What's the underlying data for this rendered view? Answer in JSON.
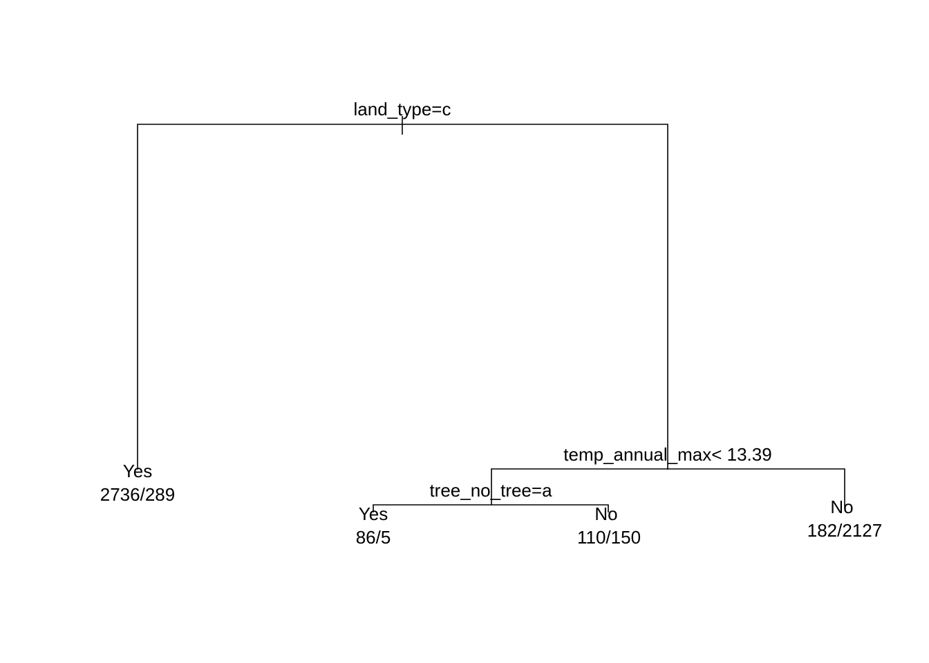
{
  "tree": {
    "root": {
      "split": "land_type=c",
      "left": {
        "leaf": {
          "class": "Yes",
          "counts": "2736/289"
        }
      },
      "right": {
        "split": "temp_annual_max< 13.39",
        "left": {
          "split": "tree_no_tree=a",
          "left": {
            "leaf": {
              "class": "Yes",
              "counts": "86/5"
            }
          },
          "right": {
            "leaf": {
              "class": "No",
              "counts": "110/150"
            }
          }
        },
        "right": {
          "leaf": {
            "class": "No",
            "counts": "182/2127"
          }
        }
      }
    }
  }
}
